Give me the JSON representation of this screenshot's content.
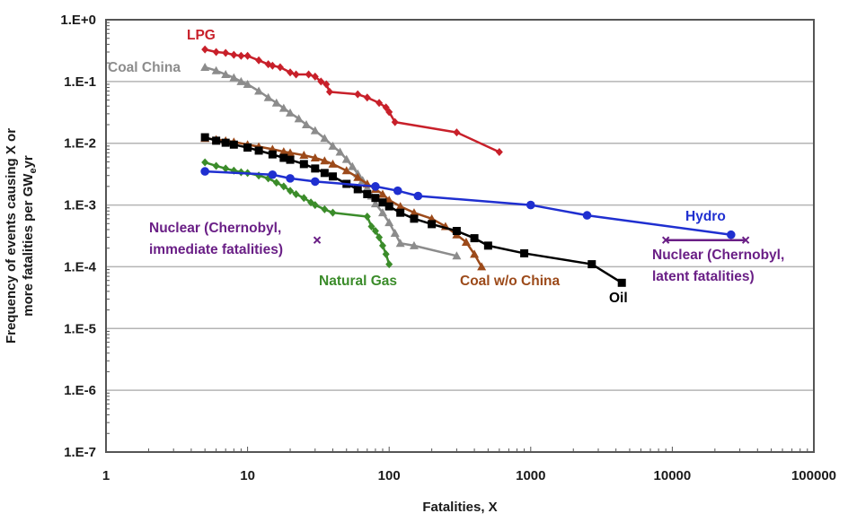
{
  "chart_data": {
    "type": "line",
    "title": "",
    "xlabel": "Fatalities, X",
    "ylabel_line1": "Frequency of events causing X or",
    "ylabel_line2_prefix": "more fatalities per GW",
    "ylabel_line2_sub": "e",
    "ylabel_line2_suffix": "yr",
    "xscale": "log",
    "yscale": "log",
    "xlim": [
      1,
      100000
    ],
    "ylim": [
      1e-07,
      1
    ],
    "grid": "horizontal",
    "legend": "inline labels",
    "x_tick_labels": [
      "1",
      "10",
      "100",
      "1000",
      "10000",
      "100000"
    ],
    "x_tick_values": [
      1,
      10,
      100,
      1000,
      10000,
      100000
    ],
    "y_tick_labels": [
      "1.E+0",
      "1.E-1",
      "1.E-2",
      "1.E-3",
      "1.E-4",
      "1.E-5",
      "1.E-6",
      "1.E-7"
    ],
    "y_tick_values": [
      1,
      0.1,
      0.01,
      0.001,
      0.0001,
      1e-05,
      1e-06,
      1e-07
    ],
    "series": [
      {
        "name": "LPG",
        "label": "LPG",
        "color": "#c8202a",
        "marker": "diamond",
        "x": [
          5,
          6,
          7,
          8,
          9,
          10,
          12,
          14,
          15,
          17,
          20,
          22,
          27,
          30,
          33,
          36,
          38,
          60,
          70,
          85,
          95,
          100,
          110,
          300,
          600
        ],
        "y": [
          0.33,
          0.3,
          0.29,
          0.27,
          0.26,
          0.26,
          0.22,
          0.19,
          0.18,
          0.17,
          0.14,
          0.13,
          0.13,
          0.12,
          0.1,
          0.09,
          0.068,
          0.062,
          0.055,
          0.045,
          0.038,
          0.032,
          0.022,
          0.015,
          0.0072
        ]
      },
      {
        "name": "Coal China",
        "label": "Coal China",
        "color": "#8c8c8c",
        "marker": "triangle",
        "x": [
          5,
          6,
          7,
          8,
          9,
          10,
          12,
          14,
          16,
          18,
          20,
          23,
          26,
          30,
          35,
          40,
          45,
          50,
          55,
          60,
          65,
          70,
          75,
          80,
          90,
          100,
          110,
          120,
          150,
          300
        ],
        "y": [
          0.17,
          0.15,
          0.13,
          0.115,
          0.1,
          0.09,
          0.07,
          0.055,
          0.045,
          0.037,
          0.031,
          0.025,
          0.02,
          0.016,
          0.012,
          0.009,
          0.0072,
          0.0055,
          0.0042,
          0.0032,
          0.0025,
          0.0019,
          0.0014,
          0.00105,
          0.00075,
          0.00052,
          0.00035,
          0.00024,
          0.00022,
          0.00015
        ]
      },
      {
        "name": "Coal w/o China",
        "label": "Coal w/o China",
        "color": "#9c4a1a",
        "marker": "triangle",
        "x": [
          5,
          6,
          7,
          8,
          10,
          12,
          15,
          18,
          20,
          25,
          30,
          35,
          40,
          50,
          60,
          70,
          80,
          90,
          100,
          120,
          150,
          200,
          250,
          300,
          350,
          400,
          450
        ],
        "y": [
          0.012,
          0.0115,
          0.011,
          0.0105,
          0.0095,
          0.0088,
          0.008,
          0.0073,
          0.007,
          0.0064,
          0.0058,
          0.0052,
          0.0046,
          0.0036,
          0.0028,
          0.0022,
          0.0018,
          0.0015,
          0.0012,
          0.00095,
          0.00075,
          0.0006,
          0.00045,
          0.00033,
          0.00025,
          0.00016,
          0.0001
        ]
      },
      {
        "name": "Oil",
        "label": "Oil",
        "color": "#000000",
        "marker": "square",
        "x": [
          5,
          6,
          7,
          8,
          10,
          12,
          15,
          18,
          20,
          25,
          30,
          35,
          40,
          50,
          60,
          70,
          80,
          90,
          100,
          120,
          150,
          200,
          300,
          400,
          500,
          900,
          2700,
          4400
        ],
        "y": [
          0.0125,
          0.011,
          0.0102,
          0.0095,
          0.0085,
          0.0076,
          0.0066,
          0.0058,
          0.0054,
          0.0046,
          0.0039,
          0.0033,
          0.0029,
          0.0022,
          0.0018,
          0.0015,
          0.0013,
          0.0011,
          0.00095,
          0.00075,
          0.0006,
          0.00049,
          0.00038,
          0.00029,
          0.00022,
          0.000165,
          0.00011,
          5.5e-05
        ]
      },
      {
        "name": "Natural Gas",
        "label": "Natural Gas",
        "color": "#3b8c2a",
        "marker": "diamond",
        "x": [
          5,
          6,
          7,
          8,
          9,
          10,
          12,
          14,
          16,
          18,
          20,
          22,
          25,
          28,
          30,
          35,
          40,
          70,
          75,
          80,
          85,
          90,
          95,
          100
        ],
        "y": [
          0.0049,
          0.0043,
          0.0039,
          0.0036,
          0.0034,
          0.0033,
          0.003,
          0.0027,
          0.0023,
          0.002,
          0.0017,
          0.0015,
          0.0013,
          0.0011,
          0.001,
          0.00085,
          0.00075,
          0.00065,
          0.00045,
          0.00038,
          0.0003,
          0.00022,
          0.00016,
          0.00011
        ]
      },
      {
        "name": "Hydro",
        "label": "Hydro",
        "color": "#1f2fd0",
        "marker": "circle",
        "x": [
          5,
          15,
          20,
          30,
          80,
          115,
          160,
          1000,
          2500,
          26000
        ],
        "y": [
          0.0035,
          0.0031,
          0.0027,
          0.0024,
          0.002,
          0.0017,
          0.0014,
          0.001,
          0.00068,
          0.00033
        ]
      },
      {
        "name": "Nuclear (Chernobyl, latent fatalities)",
        "label_line1": "Nuclear (Chernobyl,",
        "label_line2": "latent fatalities)",
        "color": "#6a1f86",
        "marker": "x",
        "x": [
          9000,
          33000
        ],
        "y": [
          0.00027,
          0.00027
        ]
      },
      {
        "name": "Nuclear (Chernobyl, immediate fatalities)",
        "label_line1": "Nuclear (Chernobyl,",
        "label_line2": "immediate fatalities)",
        "color": "#6a1f86",
        "marker": "x",
        "x": [
          31
        ],
        "y": [
          0.00027
        ]
      }
    ]
  }
}
